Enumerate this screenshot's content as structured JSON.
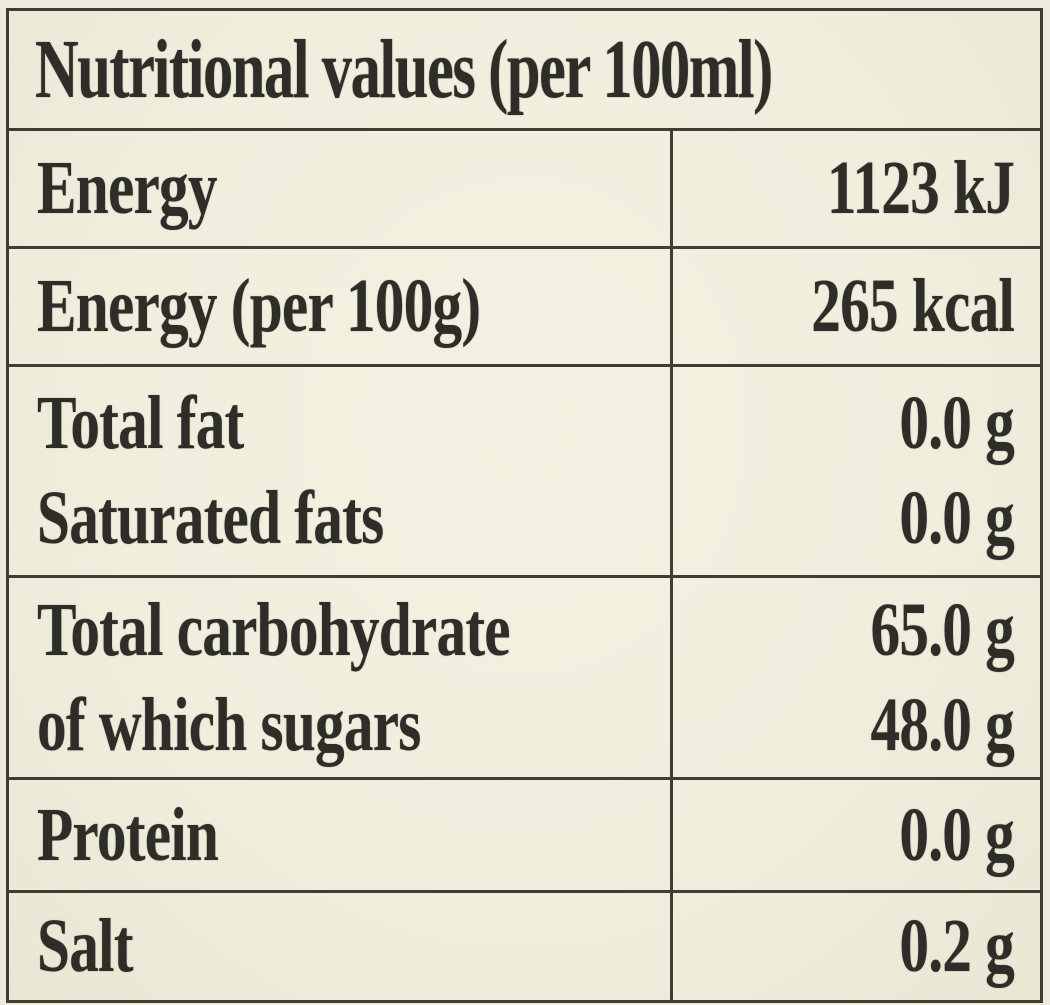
{
  "table": {
    "title": "Nutritional values (per 100ml)",
    "rows": [
      {
        "type": "single",
        "label": "Energy",
        "value": "1123 kJ"
      },
      {
        "type": "single",
        "label": "Energy (per 100g)",
        "value": "265 kcal"
      },
      {
        "type": "double",
        "labels": [
          "Total fat",
          "Saturated fats"
        ],
        "values": [
          "0.0 g",
          "0.0 g"
        ]
      },
      {
        "type": "double",
        "labels": [
          "Total carbohydrate",
          "of which sugars"
        ],
        "values": [
          "65.0 g",
          "48.0 g"
        ]
      },
      {
        "type": "single",
        "label": "Protein",
        "value": "0.0 g"
      },
      {
        "type": "single",
        "label": "Salt",
        "value": "0.2 g"
      }
    ]
  },
  "colors": {
    "background": "#f0eedd",
    "line": "#3f3d34",
    "text": "#2e2d27"
  }
}
